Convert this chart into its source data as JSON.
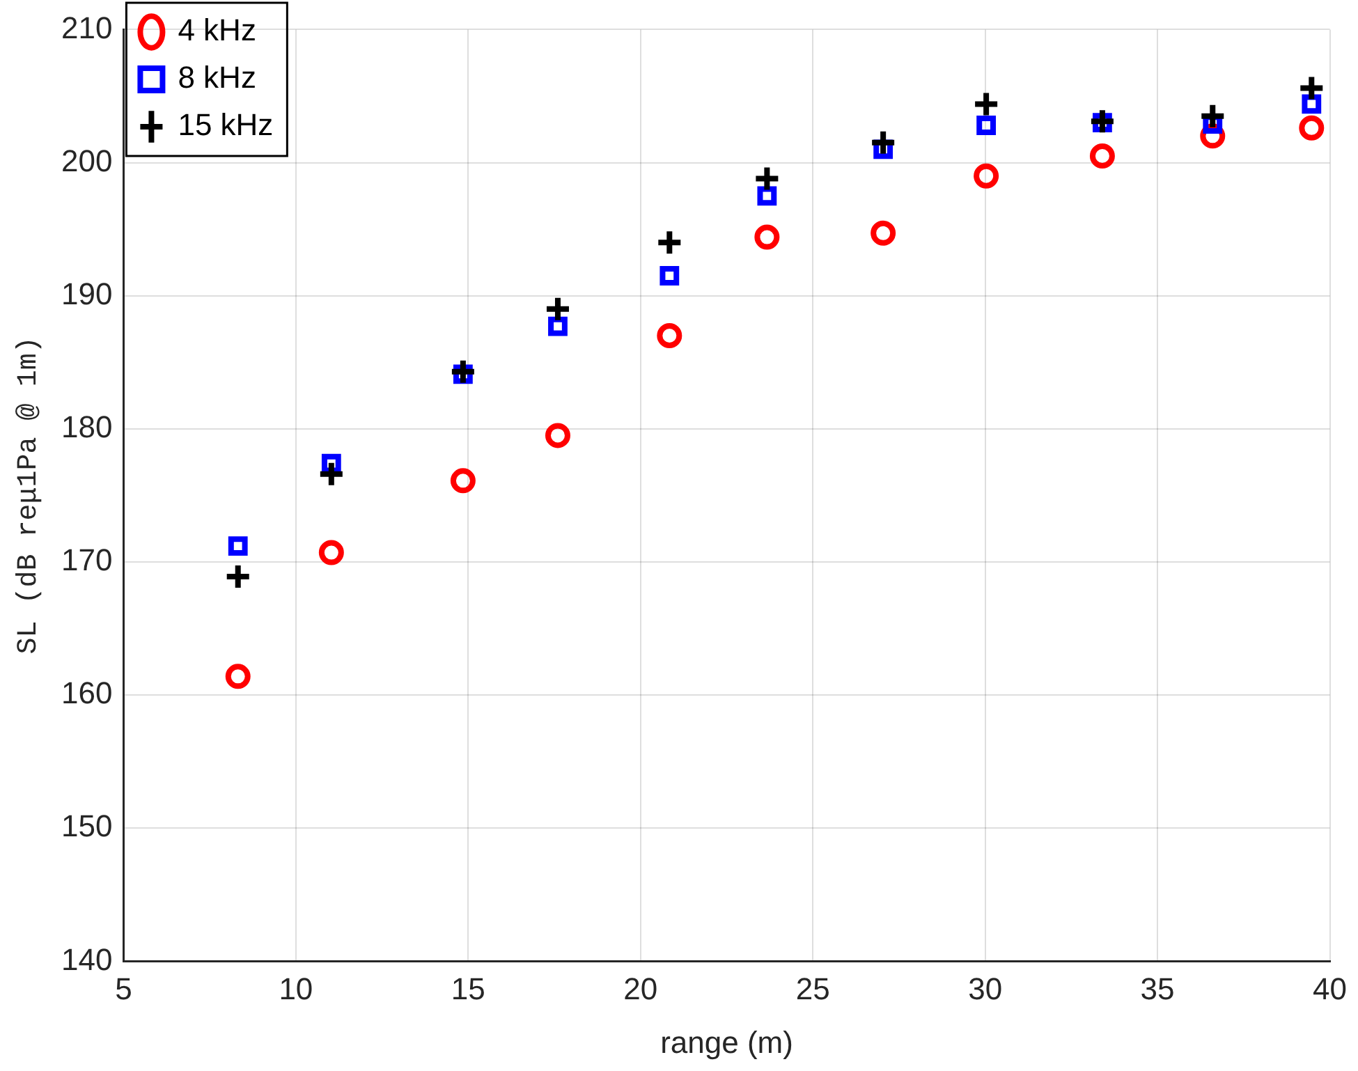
{
  "chart_data": {
    "type": "scatter",
    "xlabel": "range (m)",
    "ylabel": "SL (dB reμ1Pa @ 1m)",
    "x": [
      8.32,
      11.03,
      14.85,
      17.6,
      20.84,
      23.67,
      27.04,
      30.03,
      33.4,
      36.6,
      39.47
    ],
    "series": [
      {
        "name": "4 kHz",
        "color": "#ff0000",
        "marker": "circle",
        "values": [
          161.4,
          170.7,
          176.1,
          179.5,
          187,
          194.4,
          194.7,
          199,
          200.5,
          202,
          202.6
        ]
      },
      {
        "name": "8 kHz",
        "color": "#0000ff",
        "marker": "square",
        "values": [
          171.2,
          177.4,
          184.1,
          187.7,
          191.5,
          197.5,
          201,
          202.8,
          203,
          202.9,
          204.4
        ]
      },
      {
        "name": "15 kHz",
        "color": "#000000",
        "marker": "cross",
        "values": [
          168.9,
          176.6,
          184.3,
          189,
          194,
          198.8,
          201.5,
          204.4,
          203.1,
          203.5,
          205.6
        ]
      }
    ],
    "xlim": [
      5,
      40
    ],
    "xticks": [
      5,
      10,
      15,
      20,
      25,
      30,
      35,
      40
    ],
    "ylim": [
      140,
      210
    ],
    "yticks": [
      140,
      150,
      160,
      170,
      180,
      190,
      200,
      210
    ],
    "grid": true,
    "legend": "top left"
  }
}
